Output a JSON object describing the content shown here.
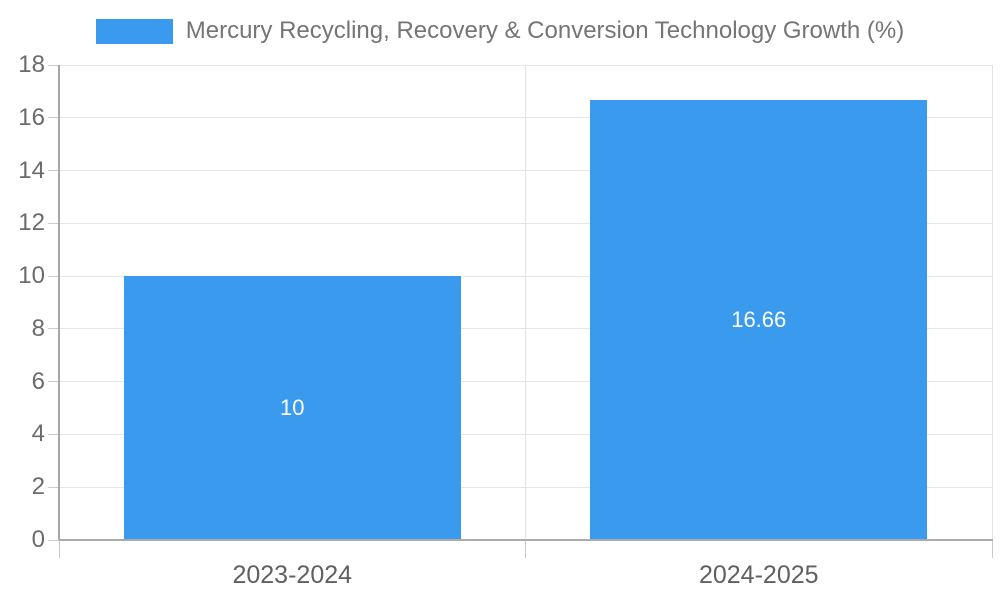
{
  "legend": {
    "label": "Mercury Recycling, Recovery & Conversion Technology Growth (%)"
  },
  "colors": {
    "bar": "#3a9aee",
    "grid": "#e6e6e6",
    "axis": "#a9a9a9",
    "tick_text": "#6b6b6b",
    "bar_label_text": "#ffffff"
  },
  "chart_data": {
    "type": "bar",
    "title": "",
    "xlabel": "",
    "ylabel": "",
    "categories": [
      "2023-2024",
      "2024-2025"
    ],
    "series": [
      {
        "name": "Mercury Recycling, Recovery & Conversion Technology Growth (%)",
        "values": [
          10,
          16.66
        ],
        "labels": [
          "10",
          "16.66"
        ],
        "color": "#3a9aee"
      }
    ],
    "ylim": [
      0,
      18
    ],
    "ytick_step": 2,
    "grid": true,
    "legend_position": "top-center",
    "bar_label_position": "inside-center"
  }
}
